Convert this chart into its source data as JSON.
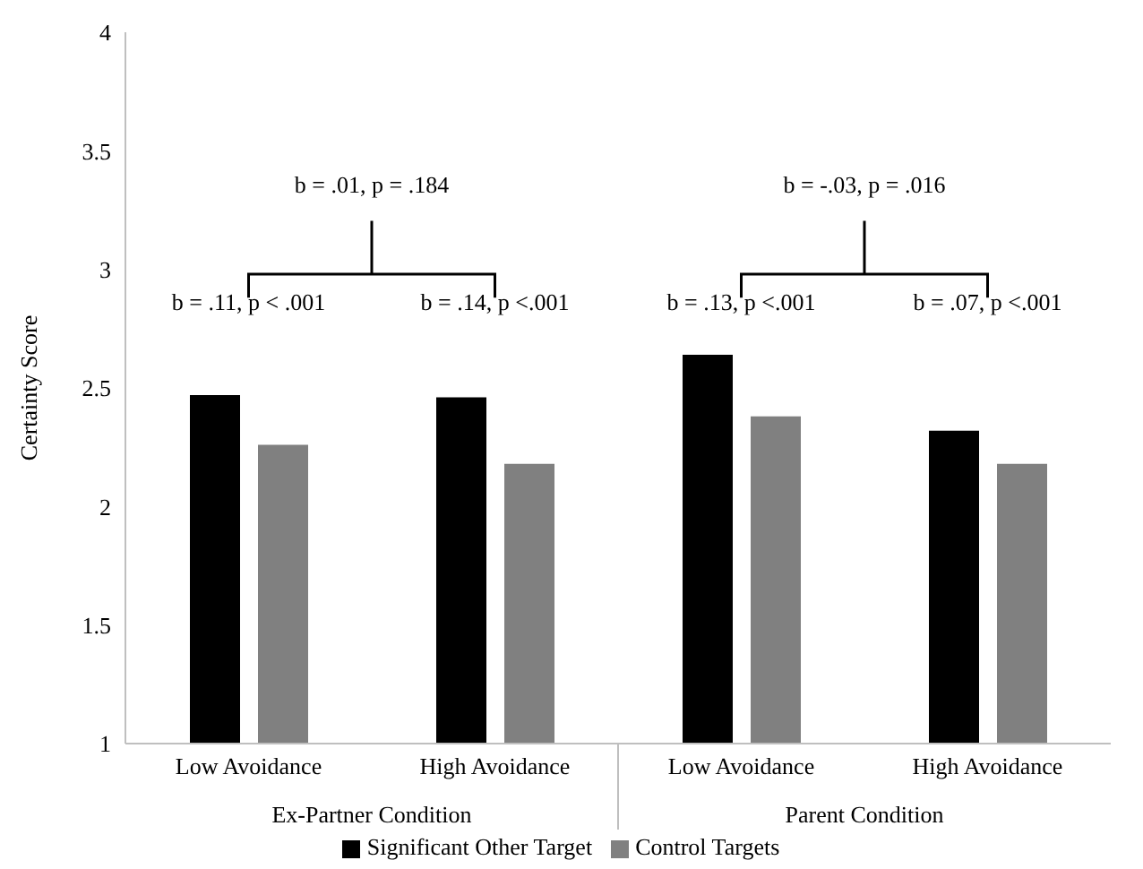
{
  "chart_data": {
    "type": "bar",
    "ylabel": "Certainty Score",
    "categories": [
      "Low Avoidance",
      "High Avoidance",
      "Low Avoidance",
      "High Avoidance"
    ],
    "series": [
      {
        "name": "Significant Other Target",
        "color": "#000000",
        "values": [
          2.47,
          2.46,
          2.64,
          2.32
        ]
      },
      {
        "name": "Control Targets",
        "color": "#808080",
        "values": [
          2.26,
          2.18,
          2.38,
          2.18
        ]
      }
    ],
    "ylim": [
      1,
      4
    ],
    "yticks": [
      1,
      1.5,
      2,
      2.5,
      3,
      3.5,
      4
    ],
    "legend": "bottom",
    "annotations": [
      "b = .01, p = .184",
      "b = -.03, p = .016",
      "b = .11, p < .001",
      "b = .14, p <.001",
      "b = .13, p <.001",
      "b = .07, p <.001",
      "Ex-Partner Condition",
      "Parent Condition"
    ]
  }
}
